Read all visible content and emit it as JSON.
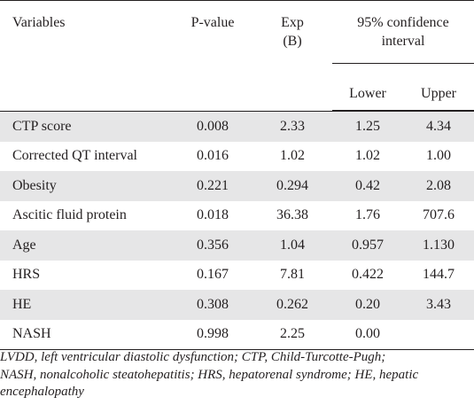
{
  "table": {
    "headers": {
      "variables": "Variables",
      "p_value": "P-value",
      "exp_b_line1": "Exp",
      "exp_b_line2": "(B)",
      "ci_line1": "95% confidence",
      "ci_line2": "interval",
      "lower": "Lower",
      "upper": "Upper"
    },
    "rows": [
      {
        "variable": "CTP score",
        "p_value": "0.008",
        "exp_b": "2.33",
        "lower": "1.25",
        "upper": "4.34"
      },
      {
        "variable": "Corrected QT interval",
        "p_value": "0.016",
        "exp_b": "1.02",
        "lower": "1.02",
        "upper": "1.00"
      },
      {
        "variable": "Obesity",
        "p_value": "0.221",
        "exp_b": "0.294",
        "lower": "0.42",
        "upper": "2.08"
      },
      {
        "variable": "Ascitic fluid protein",
        "p_value": "0.018",
        "exp_b": "36.38",
        "lower": "1.76",
        "upper": "707.6"
      },
      {
        "variable": "Age",
        "p_value": "0.356",
        "exp_b": "1.04",
        "lower": "0.957",
        "upper": "1.130"
      },
      {
        "variable": "HRS",
        "p_value": "0.167",
        "exp_b": "7.81",
        "lower": "0.422",
        "upper": "144.7"
      },
      {
        "variable": "HE",
        "p_value": "0.308",
        "exp_b": "0.262",
        "lower": "0.20",
        "upper": "3.43"
      },
      {
        "variable": "NASH",
        "p_value": "0.998",
        "exp_b": "2.25",
        "lower": "0.00",
        "upper": ""
      }
    ]
  },
  "footnote": {
    "line1": "LVDD, left ventricular diastolic dysfunction; CTP, Child-Turcotte-Pugh;",
    "line2": "NASH, nonalcoholic steatohepatitis; HRS, hepatorenal syndrome; HE, hepatic",
    "line3": "encephalopathy"
  },
  "colors": {
    "shade": "#e6e6e7",
    "text": "#231f20"
  }
}
